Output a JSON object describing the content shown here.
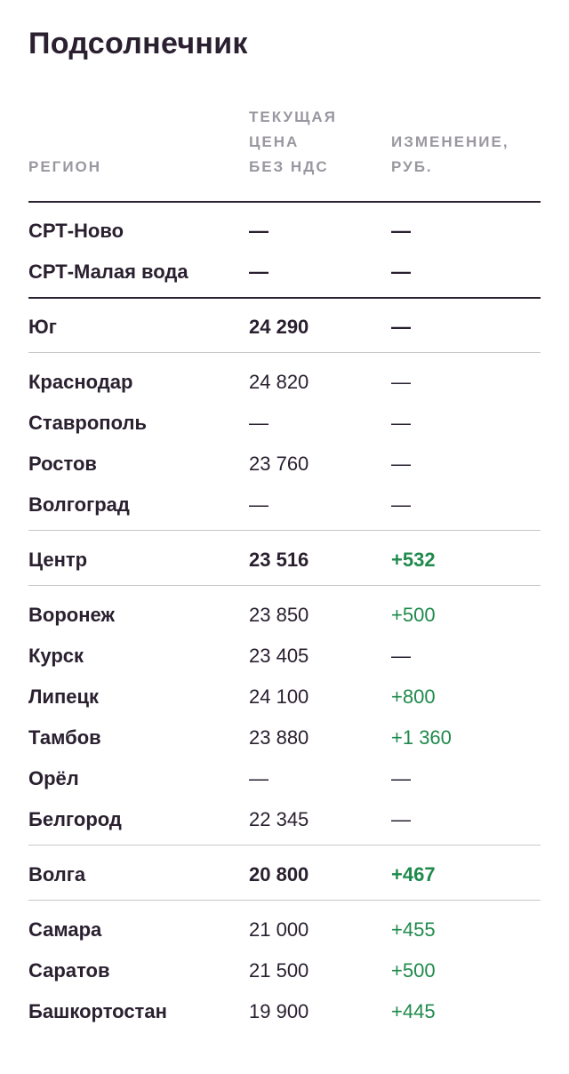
{
  "title": "Подсолнечник",
  "columns": {
    "region": "РЕГИОН",
    "price": "ТЕКУЩАЯ\nЦЕНА\nБЕЗ НДС",
    "change": "ИЗМЕНЕНИЕ,\nРУБ."
  },
  "rows": [
    {
      "region": "СРТ-Ново",
      "price": "—",
      "change": "—",
      "bold": true,
      "positive": false
    },
    {
      "region": "СРТ-Малая вода",
      "price": "—",
      "change": "—",
      "bold": true,
      "positive": false
    },
    {
      "region": "Юг",
      "price": "24 290",
      "change": "—",
      "bold": true,
      "positive": false
    },
    {
      "region": "Краснодар",
      "price": "24 820",
      "change": "—",
      "bold": false,
      "positive": false
    },
    {
      "region": "Ставрополь",
      "price": "—",
      "change": "—",
      "bold": false,
      "positive": false
    },
    {
      "region": "Ростов",
      "price": "23 760",
      "change": "—",
      "bold": false,
      "positive": false
    },
    {
      "region": "Волгоград",
      "price": "—",
      "change": "—",
      "bold": false,
      "positive": false
    },
    {
      "region": "Центр",
      "price": "23 516",
      "change": "+532",
      "bold": true,
      "positive": true
    },
    {
      "region": "Воронеж",
      "price": "23 850",
      "change": "+500",
      "bold": false,
      "positive": true
    },
    {
      "region": "Курск",
      "price": "23 405",
      "change": "—",
      "bold": false,
      "positive": false
    },
    {
      "region": "Липецк",
      "price": "24 100",
      "change": "+800",
      "bold": false,
      "positive": true
    },
    {
      "region": "Тамбов",
      "price": "23 880",
      "change": "+1 360",
      "bold": false,
      "positive": true
    },
    {
      "region": "Орёл",
      "price": "—",
      "change": "—",
      "bold": false,
      "positive": false
    },
    {
      "region": "Белгород",
      "price": "22 345",
      "change": "—",
      "bold": false,
      "positive": false
    },
    {
      "region": "Волга",
      "price": "20 800",
      "change": "+467",
      "bold": true,
      "positive": true
    },
    {
      "region": "Самара",
      "price": "21 000",
      "change": "+455",
      "bold": false,
      "positive": true
    },
    {
      "region": "Саратов",
      "price": "21 500",
      "change": "+500",
      "bold": false,
      "positive": true
    },
    {
      "region": "Башкортостан",
      "price": "19 900",
      "change": "+445",
      "bold": false,
      "positive": true
    }
  ],
  "colors": {
    "text": "#2a2030",
    "muted": "#9a97a0",
    "positive": "#1f8a4c",
    "rule": "#c9c6cc"
  }
}
